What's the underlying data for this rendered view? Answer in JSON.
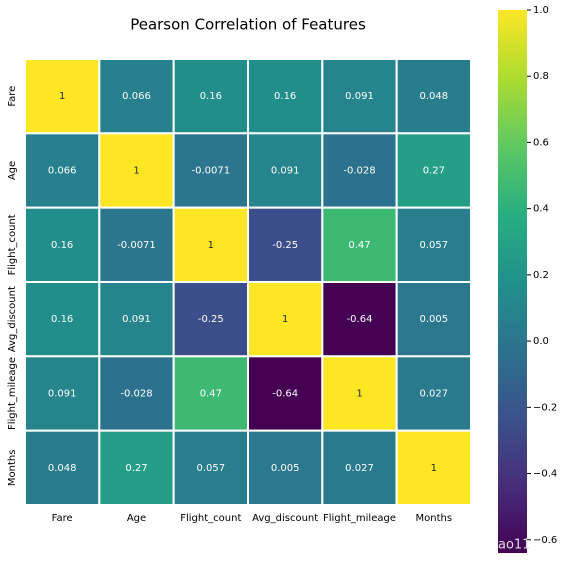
{
  "chart_data": {
    "type": "heatmap",
    "title": "Pearson Correlation of Features",
    "categories": [
      "Fare",
      "Age",
      "Flight_count",
      "Avg_discount",
      "Flight_mileage",
      "Months"
    ],
    "values": [
      [
        1,
        0.066,
        0.16,
        0.16,
        0.091,
        0.048
      ],
      [
        0.066,
        1,
        -0.0071,
        0.091,
        -0.028,
        0.27
      ],
      [
        0.16,
        -0.0071,
        1,
        -0.25,
        0.47,
        0.057
      ],
      [
        0.16,
        0.091,
        -0.25,
        1,
        -0.64,
        0.005
      ],
      [
        0.091,
        -0.028,
        0.47,
        -0.64,
        1,
        0.027
      ],
      [
        0.048,
        0.27,
        0.057,
        0.005,
        0.027,
        1
      ]
    ],
    "colormap": "viridis",
    "clim": [
      -0.64,
      1
    ],
    "cticks": [
      {
        "value": 1,
        "label": "1.0"
      },
      {
        "value": 0.8,
        "label": "0.8"
      },
      {
        "value": 0.6,
        "label": "0.6"
      },
      {
        "value": 0.4,
        "label": "0.4"
      },
      {
        "value": 0.2,
        "label": "0.2"
      },
      {
        "value": 0,
        "label": "0.0"
      },
      {
        "value": -0.2,
        "label": "−0.2"
      },
      {
        "value": -0.4,
        "label": "−0.4"
      },
      {
        "value": -0.6,
        "label": "−0.6"
      }
    ],
    "watermark": "ao11"
  }
}
